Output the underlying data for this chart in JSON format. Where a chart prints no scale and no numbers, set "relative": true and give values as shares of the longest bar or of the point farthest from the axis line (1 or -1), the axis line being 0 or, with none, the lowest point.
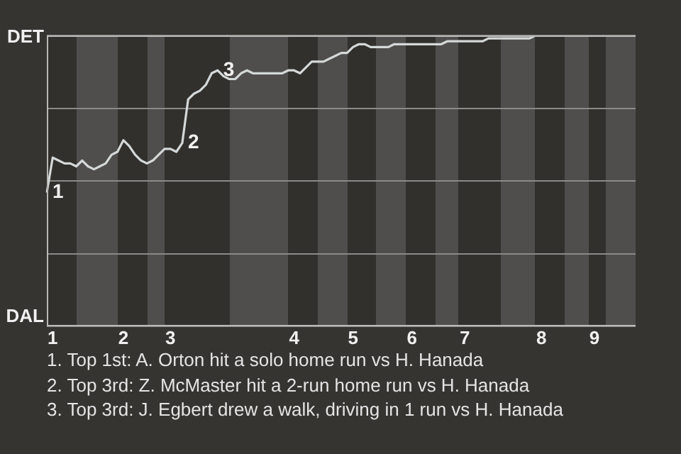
{
  "chart_data": {
    "type": "line",
    "relative": true,
    "categories": [
      null,
      "1",
      null,
      null,
      null,
      null,
      null,
      null,
      null,
      null,
      null,
      null,
      null,
      "2",
      null,
      null,
      null,
      null,
      null,
      null,
      null,
      "3",
      null,
      null,
      null,
      null,
      null,
      null,
      null,
      null,
      null,
      null,
      null,
      null,
      null,
      null,
      null,
      null,
      null,
      null,
      null,
      null,
      "4",
      null,
      null,
      null,
      null,
      null,
      null,
      null,
      null,
      null,
      "5",
      null,
      null,
      null,
      null,
      null,
      null,
      null,
      null,
      null,
      "6",
      null,
      null,
      null,
      null,
      null,
      null,
      null,
      null,
      "7",
      null,
      null,
      null,
      null,
      null,
      null,
      null,
      null,
      null,
      null,
      null,
      null,
      "8",
      null,
      null,
      null,
      null,
      null,
      null,
      null,
      null,
      "9",
      null,
      null,
      null,
      null,
      null,
      null,
      null
    ],
    "grid": "y",
    "marker": "none",
    "series": [
      {
        "color": "#d4d8d8",
        "values": [
          0.46,
          0.58,
          0.57,
          0.56,
          0.56,
          0.55,
          0.57,
          0.55,
          0.54,
          0.55,
          0.56,
          0.59,
          0.6,
          0.64,
          0.62,
          0.59,
          0.57,
          0.56,
          0.57,
          0.59,
          0.61,
          0.61,
          0.6,
          0.63,
          0.78,
          0.8,
          0.81,
          0.83,
          0.87,
          0.88,
          0.86,
          0.85,
          0.85,
          0.87,
          0.88,
          0.87,
          0.87,
          0.87,
          0.87,
          0.87,
          0.87,
          0.88,
          0.88,
          0.87,
          0.89,
          0.91,
          0.91,
          0.91,
          0.92,
          0.93,
          0.94,
          0.94,
          0.96,
          0.97,
          0.97,
          0.96,
          0.96,
          0.96,
          0.96,
          0.97,
          0.97,
          0.97,
          0.97,
          0.97,
          0.97,
          0.97,
          0.97,
          0.97,
          0.98,
          0.98,
          0.98,
          0.98,
          0.98,
          0.98,
          0.98,
          0.99,
          0.99,
          0.99,
          0.99,
          0.99,
          0.99,
          0.99,
          0.99,
          1,
          1,
          1,
          1,
          1,
          1,
          1,
          1,
          1,
          1,
          1,
          1,
          1,
          1,
          1,
          1,
          1,
          1
        ]
      }
    ],
    "annotations": [
      "DET",
      "DAL",
      "1",
      "2",
      "3",
      "1. Top 1st: A. Orton hit a solo home run vs H. Hanada",
      "2. Top 3rd: Z. McMaster hit a 2-run home run vs H. Hanada",
      "3. Top 3rd: J. Egbert drew a walk, driving in 1 run vs H. Hanada"
    ]
  }
}
